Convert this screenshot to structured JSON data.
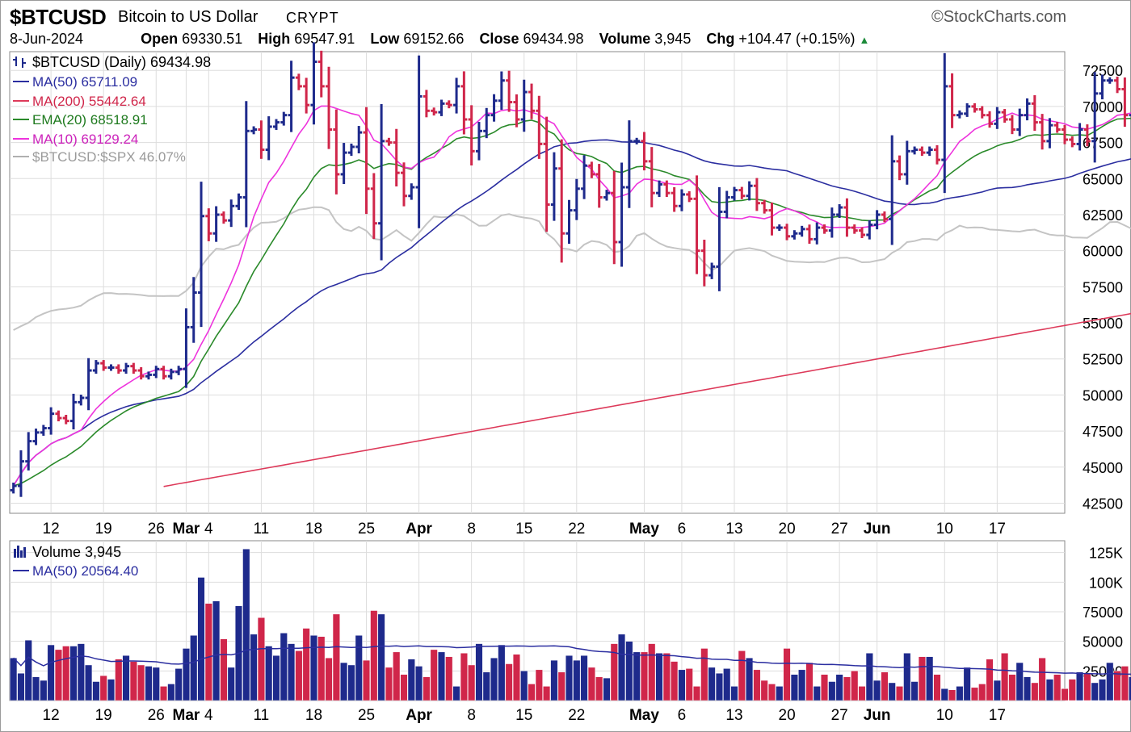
{
  "header": {
    "symbol": "$BTCUSD",
    "name": "Bitcoin to US Dollar",
    "exchange": "CRYPT",
    "brand": "©StockCharts.com",
    "date": "8-Jun-2024",
    "open_label": "Open",
    "open": "69330.51",
    "high_label": "High",
    "high": "69547.91",
    "low_label": "Low",
    "low": "69152.66",
    "close_label": "Close",
    "close": "69434.98",
    "volume_label": "Volume",
    "volume": "3,945",
    "chg_label": "Chg",
    "chg": "+104.47 (+0.15%)",
    "chg_direction": "up"
  },
  "colors": {
    "up_bar": "#1e2a8c",
    "down_bar": "#d0264a",
    "ma50": "#2b2ea0",
    "ma200": "#dd3a5a",
    "ema20": "#2a8a2a",
    "ma10": "#ee33dd",
    "ratio": "#c4c4c4",
    "grid": "#dddddd"
  },
  "legend": {
    "price": "$BTCUSD (Daily) 69434.98",
    "ma50": "MA(50) 65711.09",
    "ma200": "MA(200) 55442.64",
    "ema20": "EMA(20) 68518.91",
    "ma10": "MA(10) 69129.24",
    "ratio": "$BTCUSD:$SPX 46.07%",
    "volume": "Volume 3,945",
    "vol_ma50": "MA(50) 20564.40"
  },
  "chart_data": [
    {
      "type": "ohlc",
      "x_ticks": [
        {
          "label": "12",
          "day": 5
        },
        {
          "label": "19",
          "day": 12
        },
        {
          "label": "26",
          "day": 19
        },
        {
          "label": "Mar",
          "day": 23,
          "bold": true
        },
        {
          "label": "4",
          "day": 26
        },
        {
          "label": "11",
          "day": 33
        },
        {
          "label": "18",
          "day": 40
        },
        {
          "label": "25",
          "day": 47
        },
        {
          "label": "Apr",
          "day": 54,
          "bold": true
        },
        {
          "label": "8",
          "day": 61
        },
        {
          "label": "15",
          "day": 68
        },
        {
          "label": "22",
          "day": 75
        },
        {
          "label": "May",
          "day": 84,
          "bold": true
        },
        {
          "label": "6",
          "day": 89
        },
        {
          "label": "13",
          "day": 96
        },
        {
          "label": "20",
          "day": 103
        },
        {
          "label": "27",
          "day": 110
        },
        {
          "label": "Jun",
          "day": 115,
          "bold": true
        },
        {
          "label": "10",
          "day": 124
        },
        {
          "label": "17",
          "day": 131
        }
      ],
      "y_ticks": [
        42500,
        45000,
        47500,
        50000,
        52500,
        55000,
        57500,
        60000,
        62500,
        65000,
        67500,
        70000,
        72500
      ],
      "y_range": [
        41800,
        73800
      ],
      "x_range": [
        -0.5,
        140
      ],
      "close": [
        43700,
        45400,
        46800,
        47400,
        47700,
        48700,
        48400,
        48200,
        49500,
        49800,
        51700,
        52200,
        51900,
        51900,
        51700,
        52000,
        51700,
        51300,
        51400,
        51800,
        51300,
        51600,
        51800,
        54700,
        57100,
        62400,
        61200,
        62500,
        62100,
        63100,
        63700,
        68300,
        68400,
        67000,
        68600,
        68900,
        69400,
        72000,
        71400,
        70100,
        73100,
        71400,
        68400,
        65300,
        66800,
        67200,
        68200,
        64300,
        61900,
        67600,
        67500,
        65400,
        63800,
        64400,
        70700,
        69700,
        69600,
        70200,
        70100,
        71400,
        69100,
        66900,
        68300,
        69400,
        70400,
        71800,
        70300,
        69100,
        71000,
        69700,
        67400,
        63200,
        65700,
        61200,
        62800,
        64300,
        65900,
        65300,
        63700,
        64000,
        60600,
        64400,
        67600,
        67600,
        66200,
        64000,
        64600,
        64000,
        63100,
        63900,
        63600,
        60000,
        58300,
        58900,
        62700,
        63700,
        64200,
        63800,
        64500,
        63300,
        62800,
        61600,
        61600,
        61000,
        61200,
        61500,
        60800,
        61600,
        61400,
        62500,
        63000,
        61600,
        61400,
        61100,
        61800,
        62500,
        62200,
        66200,
        65300,
        66900,
        67000,
        66800,
        67000,
        66300,
        71400,
        69400,
        69500,
        70000,
        69800,
        69400,
        68800,
        69600,
        69100,
        68400,
        69400,
        70200,
        68900,
        67600,
        68700,
        68400,
        67700,
        67400,
        68400,
        67600,
        70900,
        71800,
        71800,
        71200,
        69400,
        69430,
        69435
      ]
    },
    {
      "type": "bar",
      "series_name": "Volume",
      "y_ticks": [
        {
          "v": 25000,
          "label": "25000"
        },
        {
          "v": 50000,
          "label": "50000"
        },
        {
          "v": 75000,
          "label": "75000"
        },
        {
          "v": 100000,
          "label": "100K"
        },
        {
          "v": 125000,
          "label": "125K"
        }
      ],
      "y_range": [
        0,
        135000
      ],
      "values": [
        36000,
        23000,
        51000,
        20000,
        17000,
        47000,
        43000,
        46000,
        46000,
        48000,
        30000,
        16000,
        21000,
        18000,
        35000,
        38000,
        33000,
        30000,
        29000,
        28000,
        12000,
        14000,
        27000,
        44000,
        55000,
        104000,
        82000,
        84000,
        52000,
        28000,
        80000,
        128000,
        56000,
        70000,
        46000,
        38000,
        57000,
        48000,
        42000,
        61000,
        55000,
        54000,
        36000,
        73000,
        32000,
        30000,
        55000,
        34000,
        76000,
        73000,
        28000,
        41000,
        22000,
        35000,
        29000,
        20000,
        43000,
        41000,
        37000,
        12000,
        40000,
        30000,
        48000,
        24000,
        36000,
        47000,
        31000,
        39000,
        25000,
        14000,
        26000,
        12000,
        34000,
        24000,
        38000,
        34000,
        38000,
        28000,
        20000,
        19000,
        48000,
        56000,
        50000,
        41000,
        41000,
        48000,
        40000,
        40000,
        33000,
        26000,
        27000,
        12000,
        44000,
        28000,
        23000,
        27000,
        12000,
        42000,
        36000,
        26000,
        17000,
        14000,
        12000,
        44000,
        22000,
        26000,
        32000,
        12000,
        22000,
        16000,
        22000,
        20000,
        25000,
        12000,
        40000,
        17000,
        24000,
        15000,
        12000,
        40000,
        16000,
        37000,
        37000,
        22000,
        10000,
        9000,
        12000,
        28000,
        11000,
        14000,
        35000,
        17000,
        40000,
        22000,
        32000,
        20000,
        15000,
        36000,
        18000,
        22000,
        10000,
        18000,
        24000,
        23000,
        15000,
        18000,
        32000,
        25000,
        29000,
        20000,
        3945
      ],
      "ma50_end": 20564.4
    }
  ]
}
